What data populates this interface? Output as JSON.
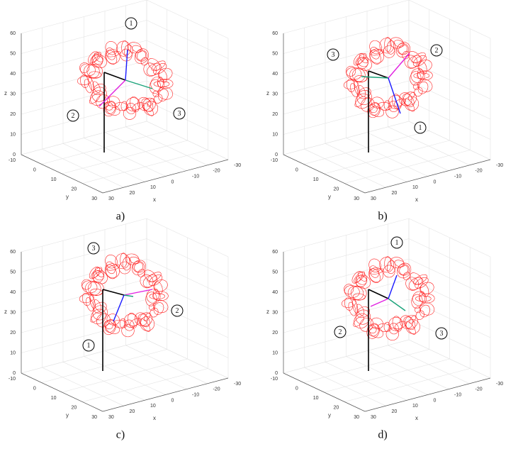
{
  "panels": [
    {
      "caption": "a)",
      "markers": [
        "1",
        "2",
        "3"
      ],
      "z_label": "z",
      "y_label": "y",
      "x_label": "x",
      "z_ticks": [
        0,
        10,
        20,
        30,
        40,
        50,
        60
      ],
      "y_ticks": [
        -10,
        0,
        10,
        20,
        30
      ],
      "x_ticks": [
        30,
        20,
        10,
        0,
        -10,
        -20,
        -30
      ]
    },
    {
      "caption": "b)",
      "markers": [
        "1",
        "2",
        "3"
      ],
      "z_label": "z",
      "y_label": "y",
      "x_label": "x",
      "z_ticks": [
        0,
        10,
        20,
        30,
        40,
        50,
        60
      ],
      "y_ticks": [
        -10,
        0,
        10,
        20,
        30
      ],
      "x_ticks": [
        30,
        20,
        10,
        0,
        -10,
        -20,
        -30
      ]
    },
    {
      "caption": "c)",
      "markers": [
        "1",
        "2",
        "3"
      ],
      "z_label": "z",
      "y_label": "y",
      "x_label": "x",
      "z_ticks": [
        0,
        10,
        20,
        30,
        40,
        50,
        60
      ],
      "y_ticks": [
        -10,
        0,
        10,
        20,
        30
      ],
      "x_ticks": [
        30,
        20,
        10,
        0,
        -10,
        -20,
        -30
      ]
    },
    {
      "caption": "d)",
      "markers": [
        "1",
        "2",
        "3"
      ],
      "z_label": "z",
      "y_label": "y",
      "x_label": "x",
      "z_ticks": [
        0,
        10,
        20,
        30,
        40,
        50,
        60
      ],
      "y_ticks": [
        -10,
        0,
        10,
        20,
        30
      ],
      "x_ticks": [
        30,
        20,
        10,
        0,
        -10,
        -20,
        -30
      ]
    }
  ]
}
